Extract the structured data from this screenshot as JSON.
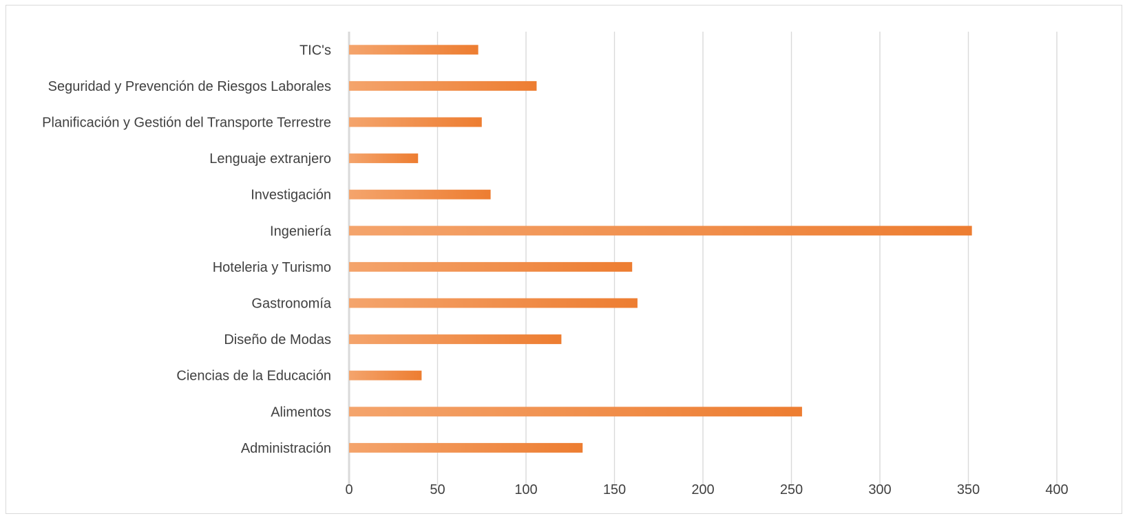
{
  "chart_data": {
    "type": "bar",
    "orientation": "horizontal",
    "title": "",
    "xlabel": "",
    "ylabel": "",
    "categories": [
      "Administración",
      "Alimentos",
      "Ciencias de la Educación",
      "Diseño de Modas",
      "Gastronomía",
      "Hoteleria y Turismo",
      "Ingeniería",
      "Investigación",
      "Lenguaje extranjero",
      "Planificación y Gestión del Transporte Terrestre",
      "Seguridad y Prevención de Riesgos Laborales",
      "TIC's"
    ],
    "values": [
      132,
      256,
      41,
      120,
      163,
      160,
      352,
      80,
      39,
      75,
      106,
      73
    ],
    "xlim": [
      0,
      400
    ],
    "xticks": [
      "0",
      "50",
      "100",
      "150",
      "200",
      "250",
      "300",
      "350",
      "400"
    ],
    "grid": true,
    "legend": "none",
    "colors": {
      "bar_start": "#f4a46c",
      "bar_end": "#ed7d31",
      "grid": "#d9d9d9",
      "text": "#404040"
    }
  }
}
